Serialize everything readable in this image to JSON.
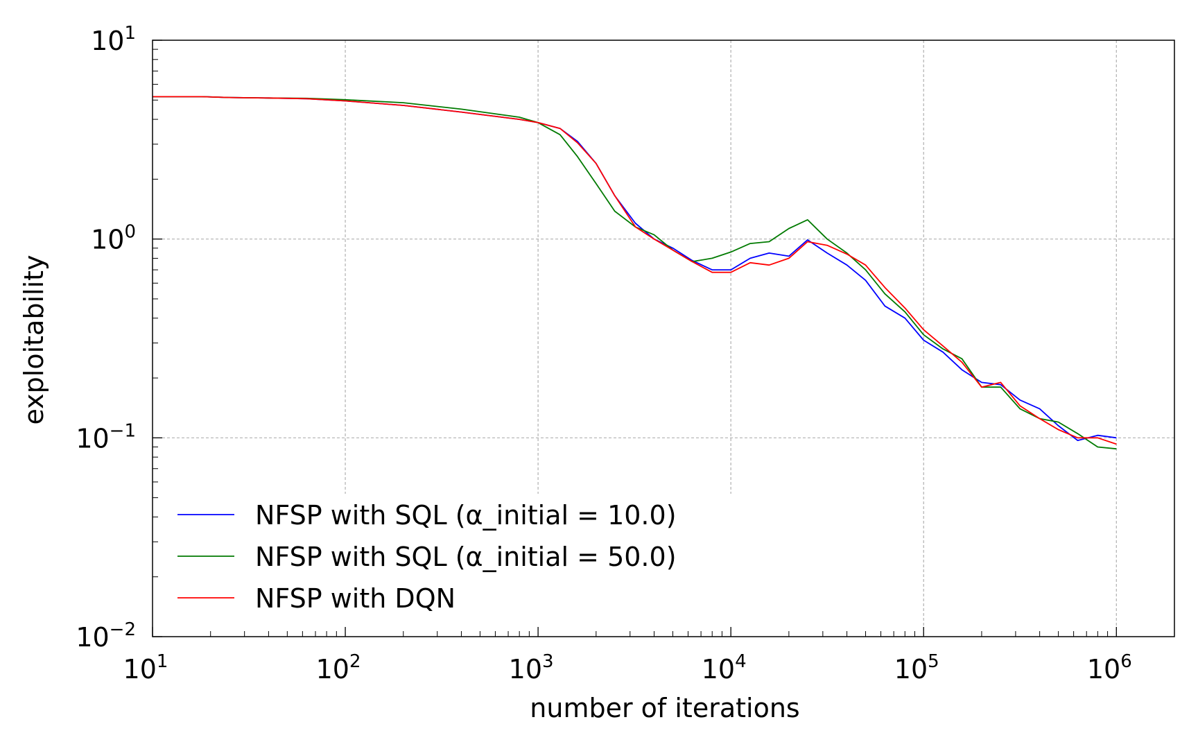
{
  "chart_data": {
    "type": "line",
    "xscale": "log",
    "yscale": "log",
    "xlim": [
      10,
      2000000
    ],
    "ylim": [
      0.01,
      10
    ],
    "xlabel": "number of iterations",
    "ylabel": "exploitability",
    "grid": true,
    "legend_position": "lower-left",
    "x_ticks": [
      {
        "base": "10",
        "exp": "1"
      },
      {
        "base": "10",
        "exp": "2"
      },
      {
        "base": "10",
        "exp": "3"
      },
      {
        "base": "10",
        "exp": "4"
      },
      {
        "base": "10",
        "exp": "5"
      },
      {
        "base": "10",
        "exp": "6"
      }
    ],
    "y_ticks": [
      {
        "base": "10",
        "exp": "−2"
      },
      {
        "base": "10",
        "exp": "−1"
      },
      {
        "base": "10",
        "exp": "0"
      },
      {
        "base": "10",
        "exp": "1"
      }
    ],
    "series": [
      {
        "name": "NFSP with SQL (α_initial = 10.0)",
        "color": "#0000ff",
        "points": [
          [
            10,
            5.2
          ],
          [
            18,
            5.2
          ],
          [
            25,
            5.15
          ],
          [
            40,
            5.12
          ],
          [
            63,
            5.08
          ],
          [
            100,
            4.95
          ],
          [
            200,
            4.7
          ],
          [
            400,
            4.35
          ],
          [
            800,
            4.0
          ],
          [
            1000,
            3.85
          ],
          [
            1300,
            3.6
          ],
          [
            1600,
            3.1
          ],
          [
            2000,
            2.4
          ],
          [
            2500,
            1.65
          ],
          [
            3200,
            1.2
          ],
          [
            4000,
            1.0
          ],
          [
            5000,
            0.9
          ],
          [
            6300,
            0.78
          ],
          [
            8000,
            0.7
          ],
          [
            10000,
            0.7
          ],
          [
            12600,
            0.8
          ],
          [
            15800,
            0.85
          ],
          [
            20000,
            0.82
          ],
          [
            25000,
            0.99
          ],
          [
            31600,
            0.85
          ],
          [
            40000,
            0.74
          ],
          [
            50000,
            0.62
          ],
          [
            63000,
            0.46
          ],
          [
            80000,
            0.4
          ],
          [
            100000,
            0.31
          ],
          [
            126000,
            0.27
          ],
          [
            158000,
            0.22
          ],
          [
            200000,
            0.19
          ],
          [
            251000,
            0.185
          ],
          [
            316000,
            0.155
          ],
          [
            400000,
            0.14
          ],
          [
            500000,
            0.115
          ],
          [
            630000,
            0.097
          ],
          [
            800000,
            0.103
          ],
          [
            1000000,
            0.1
          ]
        ]
      },
      {
        "name": "NFSP with SQL (α_initial = 50.0)",
        "color": "#007a00",
        "points": [
          [
            10,
            5.2
          ],
          [
            18,
            5.2
          ],
          [
            25,
            5.15
          ],
          [
            40,
            5.12
          ],
          [
            63,
            5.1
          ],
          [
            100,
            5.02
          ],
          [
            200,
            4.85
          ],
          [
            400,
            4.5
          ],
          [
            800,
            4.1
          ],
          [
            1000,
            3.85
          ],
          [
            1300,
            3.35
          ],
          [
            1600,
            2.6
          ],
          [
            2000,
            1.9
          ],
          [
            2500,
            1.38
          ],
          [
            3200,
            1.15
          ],
          [
            4000,
            1.05
          ],
          [
            5000,
            0.88
          ],
          [
            6300,
            0.77
          ],
          [
            8000,
            0.8
          ],
          [
            10000,
            0.86
          ],
          [
            12600,
            0.95
          ],
          [
            15800,
            0.97
          ],
          [
            20000,
            1.13
          ],
          [
            25000,
            1.25
          ],
          [
            31600,
            1.0
          ],
          [
            40000,
            0.85
          ],
          [
            50000,
            0.7
          ],
          [
            63000,
            0.53
          ],
          [
            80000,
            0.43
          ],
          [
            100000,
            0.33
          ],
          [
            126000,
            0.28
          ],
          [
            158000,
            0.25
          ],
          [
            200000,
            0.18
          ],
          [
            251000,
            0.18
          ],
          [
            316000,
            0.14
          ],
          [
            400000,
            0.125
          ],
          [
            500000,
            0.12
          ],
          [
            630000,
            0.105
          ],
          [
            800000,
            0.09
          ],
          [
            1000000,
            0.088
          ]
        ]
      },
      {
        "name": "NFSP with DQN",
        "color": "#ff0000",
        "points": [
          [
            10,
            5.2
          ],
          [
            18,
            5.2
          ],
          [
            25,
            5.15
          ],
          [
            40,
            5.12
          ],
          [
            63,
            5.08
          ],
          [
            100,
            4.95
          ],
          [
            200,
            4.7
          ],
          [
            400,
            4.35
          ],
          [
            800,
            4.0
          ],
          [
            1000,
            3.85
          ],
          [
            1300,
            3.6
          ],
          [
            1600,
            3.05
          ],
          [
            2000,
            2.4
          ],
          [
            2500,
            1.65
          ],
          [
            3200,
            1.15
          ],
          [
            4000,
            1.0
          ],
          [
            5000,
            0.88
          ],
          [
            6300,
            0.77
          ],
          [
            8000,
            0.68
          ],
          [
            10000,
            0.68
          ],
          [
            12600,
            0.76
          ],
          [
            15800,
            0.74
          ],
          [
            20000,
            0.8
          ],
          [
            25000,
            0.97
          ],
          [
            31600,
            0.93
          ],
          [
            40000,
            0.84
          ],
          [
            50000,
            0.74
          ],
          [
            63000,
            0.57
          ],
          [
            80000,
            0.45
          ],
          [
            100000,
            0.35
          ],
          [
            126000,
            0.29
          ],
          [
            158000,
            0.24
          ],
          [
            200000,
            0.18
          ],
          [
            251000,
            0.19
          ],
          [
            316000,
            0.145
          ],
          [
            400000,
            0.125
          ],
          [
            500000,
            0.11
          ],
          [
            630000,
            0.1
          ],
          [
            800000,
            0.1
          ],
          [
            1000000,
            0.093
          ]
        ]
      }
    ]
  }
}
